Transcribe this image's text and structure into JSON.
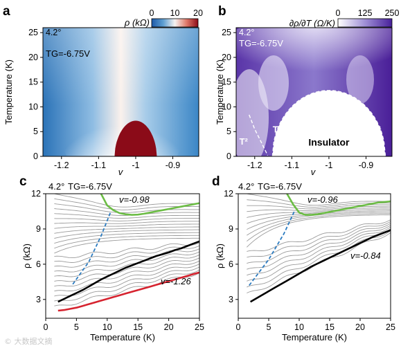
{
  "figure": {
    "watermark": "© 大数据文摘",
    "colors": {
      "green": "#6cbd45",
      "red": "#d6232f",
      "blue": "#2b7bc0",
      "gray": "#9a9a9a",
      "black": "#000000"
    }
  },
  "chart_data": [
    {
      "panel": "a",
      "type": "heatmap",
      "corner_label": "4.2°",
      "annotation": "TG=-6.75V",
      "xlabel": "v",
      "ylabel": "Temperature (K)",
      "xlim": [
        -1.25,
        -0.83
      ],
      "ylim": [
        0,
        26
      ],
      "xticks": [
        -1.2,
        -1.1,
        -1,
        -0.9
      ],
      "xtick_labels": [
        "-1.2",
        "-1.1",
        "-1",
        "-0.9"
      ],
      "yticks": [
        0,
        5,
        10,
        15,
        20,
        25
      ],
      "ytick_labels": [
        "0",
        "5",
        "10",
        "15",
        "20",
        "25"
      ],
      "colorbar": {
        "label": "ρ (kΩ)",
        "min": 0,
        "max": 20,
        "ticks": [
          0,
          10,
          20
        ],
        "tick_labels": [
          "0",
          "10",
          "20"
        ],
        "colormap": "blue-white-red"
      },
      "insulator_dome": {
        "center_v": -1.0,
        "half_width_v": 0.057,
        "peak_T": 7.2
      }
    },
    {
      "panel": "b",
      "type": "heatmap",
      "corner_label": "4.2°",
      "annotation": "TG=-6.75V",
      "xlabel": "v",
      "ylabel": "Temperature (K)",
      "xlim": [
        -1.25,
        -0.83
      ],
      "ylim": [
        0,
        26
      ],
      "xticks": [
        -1.2,
        -1.1,
        -1,
        -0.9
      ],
      "xtick_labels": [
        "-1.2",
        "-1.1",
        "-1",
        "-0.9"
      ],
      "yticks": [
        0,
        5,
        10,
        15,
        20,
        25
      ],
      "ytick_labels": [
        "0",
        "5",
        "10",
        "15",
        "20",
        "25"
      ],
      "colorbar": {
        "label": "∂ρ/∂T (Ω/K)",
        "min": 0,
        "max": 250,
        "ticks": [
          0,
          125,
          250
        ],
        "tick_labels": [
          "0",
          "125",
          "250"
        ],
        "colormap": "white-purple"
      },
      "region_labels": [
        {
          "text": "T¹",
          "v": -1.14,
          "T": 4.8
        },
        {
          "text": "T¹",
          "v": -0.87,
          "T": 4.8
        },
        {
          "text": "T²",
          "v": -1.23,
          "T": 2.4
        },
        {
          "text": "Insulator",
          "v": -1.0,
          "T": 2.2
        }
      ],
      "dome_boundary": {
        "center_v": -1.0,
        "half_width_v": 0.152,
        "peak_T": 13.3
      },
      "t2_boundary": [
        [
          -1.215,
          8.4
        ],
        [
          -1.2,
          5.5
        ],
        [
          -1.18,
          2.5
        ],
        [
          -1.165,
          0.2
        ]
      ]
    },
    {
      "panel": "c",
      "type": "line",
      "corner_label": "4.2°",
      "annotation": "TG=-6.75V",
      "xlabel": "Temperature (K)",
      "ylabel": "ρ (kΩ)",
      "xlim": [
        0,
        25
      ],
      "ylim": [
        1.4,
        12
      ],
      "xticks": [
        0,
        5,
        10,
        15,
        20,
        25
      ],
      "xtick_labels": [
        "0",
        "5",
        "10",
        "15",
        "20",
        "25"
      ],
      "yticks": [
        3,
        6,
        9,
        12
      ],
      "ytick_labels": [
        "3",
        "6",
        "9",
        "12"
      ],
      "x": [
        2,
        3,
        4,
        5,
        6,
        7,
        8,
        9,
        10,
        11,
        12,
        13,
        14,
        15,
        16,
        17,
        18,
        19,
        20,
        21,
        22,
        23,
        24,
        25
      ],
      "series": [
        {
          "name": "v=-0.98",
          "color": "#6cbd45",
          "label": "v=-0.98",
          "values": [
            null,
            null,
            null,
            null,
            null,
            null,
            null,
            12.0,
            11.0,
            10.6,
            10.35,
            10.25,
            10.2,
            10.22,
            10.3,
            10.4,
            10.5,
            10.6,
            10.7,
            10.8,
            10.9,
            11.0,
            11.1,
            11.2
          ]
        },
        {
          "name": "v=-1.26",
          "color": "#d6232f",
          "label": "v=-1.26",
          "values": [
            2.05,
            2.1,
            2.2,
            2.3,
            2.45,
            2.6,
            2.75,
            2.9,
            3.05,
            3.2,
            3.35,
            3.5,
            3.65,
            3.8,
            3.95,
            4.1,
            4.25,
            4.4,
            4.55,
            4.7,
            4.85,
            5.0,
            5.15,
            5.3
          ]
        },
        {
          "name": "black",
          "color": "#000000",
          "label": "",
          "values": [
            2.8,
            3.05,
            3.3,
            3.55,
            3.8,
            4.1,
            4.4,
            4.7,
            4.95,
            5.2,
            5.45,
            5.7,
            5.9,
            6.1,
            6.3,
            6.5,
            6.7,
            6.85,
            7.0,
            7.2,
            7.35,
            7.55,
            7.75,
            7.95
          ]
        }
      ],
      "gray_family": {
        "count": 24,
        "low_T_start_range": [
          2.3,
          12.0
        ],
        "high_T_end_range": [
          5.6,
          11.1
        ]
      },
      "crossover_line": {
        "color": "#2b7bc0",
        "points": [
          [
            4.4,
            4.3
          ],
          [
            7.0,
            6.2
          ],
          [
            9.0,
            8.4
          ],
          [
            10.6,
            10.5
          ]
        ]
      }
    },
    {
      "panel": "d",
      "type": "line",
      "corner_label": "4.2°",
      "annotation": "TG=-6.75V",
      "xlabel": "Temperature (K)",
      "ylabel": "ρ (kΩ)",
      "xlim": [
        0,
        25
      ],
      "ylim": [
        1.4,
        12
      ],
      "xticks": [
        0,
        5,
        10,
        15,
        20,
        25
      ],
      "xtick_labels": [
        "0",
        "5",
        "10",
        "15",
        "20",
        "25"
      ],
      "yticks": [
        3,
        6,
        9,
        12
      ],
      "ytick_labels": [
        "3",
        "6",
        "9",
        "12"
      ],
      "x": [
        2,
        3,
        4,
        5,
        6,
        7,
        8,
        9,
        10,
        11,
        12,
        13,
        14,
        15,
        16,
        17,
        18,
        19,
        20,
        21,
        22,
        23,
        24,
        25
      ],
      "series": [
        {
          "name": "v=-0.96",
          "color": "#6cbd45",
          "label": "v=-0.96",
          "values": [
            null,
            null,
            null,
            null,
            null,
            null,
            12.0,
            11.1,
            10.4,
            10.2,
            10.2,
            10.25,
            10.35,
            10.45,
            10.55,
            10.65,
            10.75,
            10.85,
            10.95,
            11.05,
            11.15,
            11.25,
            11.3,
            11.35
          ]
        },
        {
          "name": "v=-0.84",
          "color": "#000000",
          "label": "v=-0.84",
          "values": [
            2.8,
            3.1,
            3.4,
            3.7,
            4.0,
            4.3,
            4.6,
            4.9,
            5.2,
            5.5,
            5.8,
            6.05,
            6.3,
            6.55,
            6.8,
            7.05,
            7.3,
            7.55,
            7.8,
            8.05,
            8.3,
            8.5,
            8.7,
            8.9
          ]
        }
      ],
      "gray_family": {
        "count": 18,
        "low_T_start_range": [
          3.4,
          12.0
        ],
        "high_T_end_range": [
          9.3,
          11.3
        ]
      },
      "crossover_line": {
        "color": "#2b7bc0",
        "points": [
          [
            1.8,
            4.2
          ],
          [
            5.0,
            6.4
          ],
          [
            7.5,
            8.6
          ],
          [
            9.2,
            10.5
          ]
        ]
      }
    }
  ]
}
